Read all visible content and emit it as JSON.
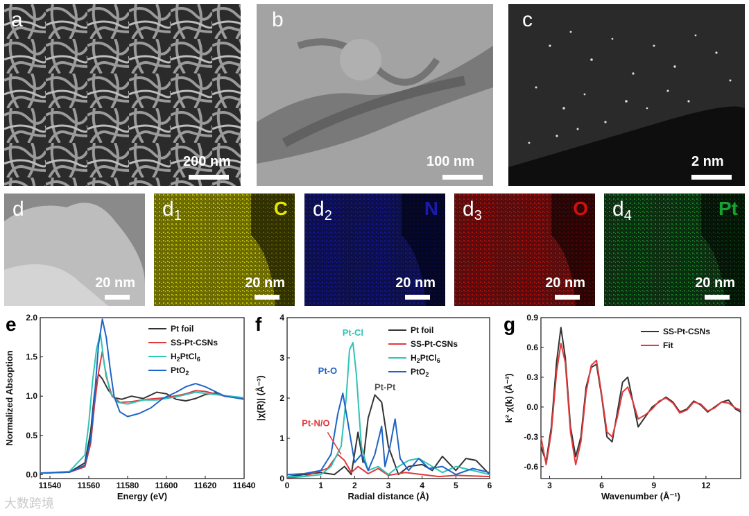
{
  "panels_top": [
    {
      "label": "a",
      "scale": "200 nm"
    },
    {
      "label": "b",
      "scale": "100 nm"
    },
    {
      "label": "c",
      "scale": "2 nm"
    }
  ],
  "panels_mid": [
    {
      "label": "d",
      "sub": "",
      "element": "",
      "scale": "20 nm",
      "bg": "#8a8a8a",
      "color": "#ffffff"
    },
    {
      "label": "d",
      "sub": "1",
      "element": "C",
      "scale": "20 nm",
      "bg": "#6b6a00",
      "color": "#e6e600"
    },
    {
      "label": "d",
      "sub": "2",
      "element": "N",
      "scale": "20 nm",
      "bg": "#0d0f4a",
      "color": "#1a1ab0"
    },
    {
      "label": "d",
      "sub": "3",
      "element": "O",
      "scale": "20 nm",
      "bg": "#5a0c0c",
      "color": "#d01010"
    },
    {
      "label": "d",
      "sub": "4",
      "element": "Pt",
      "scale": "20 nm",
      "bg": "#0c2d10",
      "color": "#18a030"
    }
  ],
  "colors": {
    "pt_foil": "#333333",
    "ss": "#e0393b",
    "h2ptcl6": "#2ec4b6",
    "pto2": "#1f63c6"
  },
  "chart_data": [
    {
      "type": "line",
      "panel": "e",
      "xlabel": "Energy (eV)",
      "ylabel": "Normalized Absoption",
      "xlim": [
        11535,
        11640
      ],
      "ylim": [
        -0.05,
        2.0
      ],
      "xticks": [
        11540,
        11560,
        11580,
        11600,
        11620,
        11640
      ],
      "yticks": [
        0.0,
        0.5,
        1.0,
        1.5,
        2.0
      ],
      "legend": [
        "Pt foil",
        "SS-Pt-CSNs",
        "H2PtCl6",
        "PtO2"
      ],
      "series": [
        {
          "name": "Pt foil",
          "x": [
            11535,
            11550,
            11558,
            11561,
            11563,
            11565,
            11567,
            11570,
            11573,
            11577,
            11582,
            11588,
            11595,
            11600,
            11605,
            11610,
            11615,
            11620,
            11625,
            11630,
            11640
          ],
          "y": [
            0.02,
            0.03,
            0.15,
            0.55,
            1.05,
            1.28,
            1.22,
            1.08,
            0.98,
            0.96,
            1.0,
            0.97,
            1.05,
            1.03,
            0.96,
            0.94,
            0.97,
            1.02,
            1.04,
            1.0,
            0.97
          ]
        },
        {
          "name": "SS-Pt-CSNs",
          "x": [
            11535,
            11550,
            11558,
            11561,
            11563,
            11565,
            11567,
            11569,
            11572,
            11576,
            11582,
            11590,
            11600,
            11610,
            11615,
            11620,
            11630,
            11640
          ],
          "y": [
            0.02,
            0.03,
            0.1,
            0.4,
            0.9,
            1.3,
            1.57,
            1.25,
            1.0,
            0.92,
            0.93,
            0.96,
            0.98,
            1.03,
            1.07,
            1.06,
            1.0,
            0.97
          ]
        },
        {
          "name": "H2PtCl6",
          "x": [
            11535,
            11550,
            11558,
            11560,
            11562,
            11564,
            11566,
            11568,
            11571,
            11575,
            11580,
            11588,
            11595,
            11605,
            11615,
            11625,
            11640
          ],
          "y": [
            0.02,
            0.04,
            0.25,
            0.65,
            1.2,
            1.6,
            1.8,
            1.4,
            1.05,
            0.92,
            0.9,
            0.95,
            0.95,
            0.99,
            1.05,
            1.02,
            0.98
          ]
        },
        {
          "name": "PtO2",
          "x": [
            11535,
            11550,
            11558,
            11561,
            11563,
            11565,
            11567,
            11569,
            11571,
            11573,
            11576,
            11580,
            11586,
            11592,
            11598,
            11605,
            11610,
            11615,
            11620,
            11630,
            11640
          ],
          "y": [
            0.02,
            0.03,
            0.12,
            0.45,
            1.0,
            1.65,
            1.98,
            1.75,
            1.35,
            1.0,
            0.8,
            0.74,
            0.78,
            0.85,
            0.97,
            1.05,
            1.12,
            1.16,
            1.12,
            1.0,
            0.96
          ]
        }
      ]
    },
    {
      "type": "line",
      "panel": "f",
      "xlabel": "Radial distance (Å)",
      "ylabel": "|χ(R)| (Å⁻³)",
      "xlim": [
        0,
        6
      ],
      "ylim": [
        0,
        4
      ],
      "xticks": [
        0,
        1,
        2,
        3,
        4,
        5,
        6
      ],
      "yticks": [
        0,
        1,
        2,
        3,
        4
      ],
      "legend": [
        "Pt foil",
        "SS-Pt-CSNs",
        "H2PtCl6",
        "PtO2"
      ],
      "annotations": [
        "Pt-Cl",
        "Pt-O",
        "Pt-Pt",
        "Pt-N/O"
      ],
      "series": [
        {
          "name": "Pt foil",
          "x": [
            0,
            0.5,
            1.0,
            1.4,
            1.7,
            1.9,
            2.1,
            2.25,
            2.4,
            2.6,
            2.8,
            3.0,
            3.3,
            3.6,
            4.0,
            4.3,
            4.6,
            5.0,
            5.3,
            5.6,
            6.0
          ],
          "y": [
            0.05,
            0.1,
            0.15,
            0.1,
            0.3,
            0.1,
            1.15,
            0.4,
            1.5,
            2.08,
            1.9,
            0.8,
            0.1,
            0.3,
            0.35,
            0.2,
            0.55,
            0.2,
            0.5,
            0.45,
            0.1
          ]
        },
        {
          "name": "SS-Pt-CSNs",
          "x": [
            0,
            0.5,
            1.0,
            1.2,
            1.5,
            1.7,
            1.9,
            2.1,
            2.4,
            2.7,
            3.0,
            3.5,
            4.0,
            4.5,
            5.0,
            6.0
          ],
          "y": [
            0.02,
            0.05,
            0.2,
            0.25,
            0.6,
            0.45,
            0.15,
            0.3,
            0.12,
            0.25,
            0.08,
            0.15,
            0.1,
            0.05,
            0.08,
            0.05
          ]
        },
        {
          "name": "H2PtCl6",
          "x": [
            0,
            0.5,
            1.0,
            1.3,
            1.6,
            1.75,
            1.85,
            1.95,
            2.05,
            2.2,
            2.4,
            2.7,
            3.0,
            3.3,
            3.6,
            3.9,
            4.2,
            4.6,
            5.0,
            5.5,
            6.0
          ],
          "y": [
            0.05,
            0.05,
            0.1,
            0.3,
            0.8,
            2.0,
            3.2,
            3.38,
            2.6,
            0.8,
            0.2,
            0.3,
            0.1,
            0.3,
            0.45,
            0.5,
            0.35,
            0.15,
            0.3,
            0.2,
            0.1
          ]
        },
        {
          "name": "PtO2",
          "x": [
            0,
            0.5,
            1.0,
            1.3,
            1.5,
            1.65,
            1.8,
            2.0,
            2.2,
            2.4,
            2.6,
            2.8,
            2.9,
            3.05,
            3.2,
            3.35,
            3.6,
            3.9,
            4.2,
            4.6,
            5.0,
            5.5,
            6.0
          ],
          "y": [
            0.1,
            0.12,
            0.2,
            0.6,
            1.6,
            2.12,
            1.4,
            0.4,
            0.6,
            0.2,
            0.6,
            1.3,
            0.3,
            0.8,
            1.48,
            0.5,
            0.2,
            0.5,
            0.25,
            0.3,
            0.1,
            0.25,
            0.15
          ]
        }
      ]
    },
    {
      "type": "line",
      "panel": "g",
      "xlabel": "Wavenumber (Å⁻¹)",
      "ylabel": "k² χ(k) (Å⁻²)",
      "xlim": [
        2.5,
        14
      ],
      "ylim": [
        -0.72,
        0.9
      ],
      "xticks": [
        3,
        6,
        9,
        12
      ],
      "yticks": [
        -0.6,
        -0.3,
        0.0,
        0.3,
        0.6,
        0.9
      ],
      "legend": [
        "SS-Pt-CSNs",
        "Fit"
      ],
      "series": [
        {
          "name": "SS-Pt-CSNs",
          "x": [
            2.5,
            2.8,
            3.1,
            3.4,
            3.65,
            3.9,
            4.2,
            4.5,
            4.8,
            5.1,
            5.4,
            5.7,
            6.0,
            6.3,
            6.6,
            6.9,
            7.2,
            7.5,
            7.8,
            8.1,
            8.5,
            8.9,
            9.3,
            9.7,
            10.1,
            10.5,
            10.9,
            11.3,
            11.7,
            12.1,
            12.5,
            12.9,
            13.3,
            13.7,
            14.0
          ],
          "y": [
            -0.4,
            -0.55,
            -0.2,
            0.45,
            0.8,
            0.5,
            -0.2,
            -0.5,
            -0.3,
            0.2,
            0.4,
            0.43,
            0.1,
            -0.3,
            -0.35,
            -0.05,
            0.25,
            0.3,
            0.05,
            -0.2,
            -0.1,
            0.0,
            0.05,
            0.1,
            0.05,
            -0.05,
            -0.02,
            0.06,
            0.02,
            -0.05,
            0.0,
            0.05,
            0.07,
            -0.02,
            -0.05
          ]
        },
        {
          "name": "Fit",
          "x": [
            2.5,
            2.8,
            3.1,
            3.4,
            3.65,
            3.9,
            4.2,
            4.5,
            4.8,
            5.1,
            5.4,
            5.7,
            6.0,
            6.3,
            6.6,
            6.9,
            7.2,
            7.5,
            7.8,
            8.1,
            8.5,
            8.9,
            9.3,
            9.7,
            10.1,
            10.5,
            10.9,
            11.3,
            11.7,
            12.1,
            12.5,
            12.9,
            13.3,
            13.7,
            14.0
          ],
          "y": [
            -0.3,
            -0.58,
            -0.25,
            0.35,
            0.64,
            0.45,
            -0.25,
            -0.58,
            -0.35,
            0.15,
            0.42,
            0.47,
            0.12,
            -0.25,
            -0.3,
            -0.1,
            0.15,
            0.2,
            0.05,
            -0.12,
            -0.08,
            -0.02,
            0.06,
            0.09,
            0.04,
            -0.06,
            -0.03,
            0.05,
            0.03,
            -0.04,
            -0.01,
            0.05,
            0.04,
            -0.01,
            -0.03
          ]
        }
      ]
    }
  ],
  "watermark": "大数跨境"
}
